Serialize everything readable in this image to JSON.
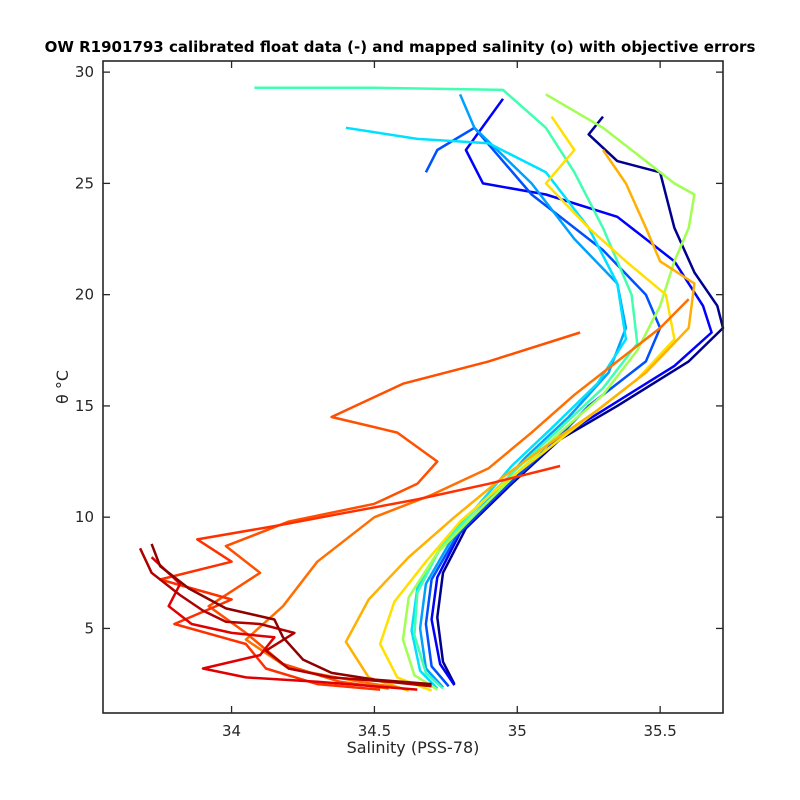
{
  "chart_data": {
    "type": "line",
    "title": "OW R1901793 calibrated float data (-) and mapped salinity (o) with objective errors",
    "xlabel": "Salinity (PSS-78)",
    "ylabel": "θ °C",
    "xlim": [
      33.55,
      35.72
    ],
    "ylim": [
      1.2,
      30.5
    ],
    "xticks": [
      "34",
      "34.5",
      "35",
      "35.5"
    ],
    "xtick_values": [
      34,
      34.5,
      35,
      35.5
    ],
    "yticks": [
      "5",
      "10",
      "15",
      "20",
      "25",
      "30"
    ],
    "ytick_values": [
      5,
      10,
      15,
      20,
      25,
      30
    ],
    "grid": false,
    "colormap": "jet",
    "series": [
      {
        "color": "#00008f",
        "points": [
          [
            35.3,
            28.0
          ],
          [
            35.25,
            27.2
          ],
          [
            35.35,
            26.0
          ],
          [
            35.5,
            25.5
          ],
          [
            35.55,
            23.0
          ],
          [
            35.62,
            21.0
          ],
          [
            35.7,
            19.5
          ],
          [
            35.72,
            18.5
          ],
          [
            35.6,
            17.0
          ],
          [
            35.35,
            15.0
          ],
          [
            35.15,
            13.5
          ],
          [
            34.98,
            11.5
          ],
          [
            34.82,
            9.5
          ],
          [
            34.74,
            7.5
          ],
          [
            34.72,
            5.5
          ],
          [
            34.74,
            3.5
          ],
          [
            34.78,
            2.5
          ]
        ]
      },
      {
        "color": "#0000ff",
        "points": [
          [
            34.95,
            28.8
          ],
          [
            34.82,
            26.5
          ],
          [
            34.88,
            25.0
          ],
          [
            35.1,
            24.5
          ],
          [
            35.35,
            23.5
          ],
          [
            35.55,
            21.5
          ],
          [
            35.65,
            19.5
          ],
          [
            35.68,
            18.3
          ],
          [
            35.55,
            16.8
          ],
          [
            35.3,
            14.8
          ],
          [
            35.1,
            13.2
          ],
          [
            34.95,
            11.2
          ],
          [
            34.8,
            9.3
          ],
          [
            34.72,
            7.3
          ],
          [
            34.7,
            5.4
          ],
          [
            34.73,
            3.4
          ],
          [
            34.78,
            2.45
          ]
        ]
      },
      {
        "color": "#0050ff",
        "points": [
          [
            34.68,
            25.5
          ],
          [
            34.72,
            26.5
          ],
          [
            34.85,
            27.5
          ],
          [
            35.05,
            24.5
          ],
          [
            35.3,
            22.0
          ],
          [
            35.45,
            20.0
          ],
          [
            35.5,
            18.5
          ],
          [
            35.45,
            17.0
          ],
          [
            35.25,
            15.0
          ],
          [
            35.1,
            13.0
          ],
          [
            34.93,
            11.0
          ],
          [
            34.79,
            9.2
          ],
          [
            34.7,
            7.2
          ],
          [
            34.68,
            5.2
          ],
          [
            34.7,
            3.3
          ],
          [
            34.76,
            2.4
          ]
        ]
      },
      {
        "color": "#00a0ff",
        "points": [
          [
            34.8,
            29.0
          ],
          [
            34.85,
            27.5
          ],
          [
            35.05,
            25.0
          ],
          [
            35.2,
            22.5
          ],
          [
            35.35,
            20.5
          ],
          [
            35.38,
            18.5
          ],
          [
            35.32,
            16.5
          ],
          [
            35.18,
            14.5
          ],
          [
            35.03,
            12.7
          ],
          [
            34.9,
            10.8
          ],
          [
            34.77,
            9.0
          ],
          [
            34.68,
            7.0
          ],
          [
            34.66,
            5.0
          ],
          [
            34.68,
            3.2
          ],
          [
            34.74,
            2.35
          ]
        ]
      },
      {
        "color": "#00e0ff",
        "points": [
          [
            34.4,
            27.5
          ],
          [
            34.65,
            27.0
          ],
          [
            34.9,
            26.8
          ],
          [
            35.1,
            25.5
          ],
          [
            35.25,
            23.0
          ],
          [
            35.35,
            20.5
          ],
          [
            35.38,
            18.0
          ],
          [
            35.28,
            16.0
          ],
          [
            35.12,
            14.0
          ],
          [
            34.98,
            12.3
          ],
          [
            34.86,
            10.5
          ],
          [
            34.74,
            8.8
          ],
          [
            34.65,
            6.8
          ],
          [
            34.63,
            4.9
          ],
          [
            34.66,
            3.1
          ],
          [
            34.72,
            2.3
          ]
        ]
      },
      {
        "color": "#40ffb0",
        "points": [
          [
            34.08,
            29.3
          ],
          [
            34.5,
            29.3
          ],
          [
            34.95,
            29.2
          ],
          [
            35.1,
            27.5
          ],
          [
            35.2,
            25.5
          ],
          [
            35.3,
            23.0
          ],
          [
            35.4,
            20.0
          ],
          [
            35.42,
            17.8
          ],
          [
            35.3,
            15.8
          ],
          [
            35.15,
            14.0
          ],
          [
            35.0,
            12.2
          ],
          [
            34.85,
            10.3
          ],
          [
            34.73,
            8.6
          ],
          [
            34.65,
            6.6
          ],
          [
            34.64,
            4.7
          ],
          [
            34.68,
            3.0
          ],
          [
            34.74,
            2.3
          ]
        ]
      },
      {
        "color": "#a0ff50",
        "points": [
          [
            35.1,
            29.0
          ],
          [
            35.3,
            27.5
          ],
          [
            35.45,
            26.0
          ],
          [
            35.55,
            25.0
          ],
          [
            35.62,
            24.5
          ],
          [
            35.6,
            23.0
          ],
          [
            35.55,
            21.5
          ],
          [
            35.5,
            19.5
          ],
          [
            35.42,
            17.5
          ],
          [
            35.3,
            15.5
          ],
          [
            35.15,
            13.8
          ],
          [
            35.0,
            12.0
          ],
          [
            34.85,
            10.1
          ],
          [
            34.72,
            8.4
          ],
          [
            34.62,
            6.4
          ],
          [
            34.6,
            4.5
          ],
          [
            34.64,
            2.9
          ],
          [
            34.72,
            2.25
          ]
        ]
      },
      {
        "color": "#ffe000",
        "points": [
          [
            35.12,
            28.0
          ],
          [
            35.2,
            26.5
          ],
          [
            35.1,
            25.0
          ],
          [
            35.25,
            23.0
          ],
          [
            35.38,
            21.5
          ],
          [
            35.52,
            20.0
          ],
          [
            35.55,
            18.0
          ],
          [
            35.42,
            16.2
          ],
          [
            35.25,
            14.5
          ],
          [
            35.1,
            13.0
          ],
          [
            34.95,
            11.5
          ],
          [
            34.8,
            9.8
          ],
          [
            34.68,
            8.0
          ],
          [
            34.57,
            6.2
          ],
          [
            34.52,
            4.3
          ],
          [
            34.58,
            2.8
          ],
          [
            34.7,
            2.2
          ]
        ]
      },
      {
        "color": "#ffb000",
        "points": [
          [
            35.3,
            26.5
          ],
          [
            35.38,
            25.0
          ],
          [
            35.45,
            23.0
          ],
          [
            35.5,
            21.5
          ],
          [
            35.62,
            20.5
          ],
          [
            35.6,
            18.5
          ],
          [
            35.45,
            16.5
          ],
          [
            35.28,
            14.8
          ],
          [
            35.1,
            13.2
          ],
          [
            34.95,
            11.8
          ],
          [
            34.78,
            10.0
          ],
          [
            34.62,
            8.2
          ],
          [
            34.48,
            6.3
          ],
          [
            34.4,
            4.4
          ],
          [
            34.48,
            2.8
          ],
          [
            34.62,
            2.2
          ]
        ]
      },
      {
        "color": "#ff7000",
        "points": [
          [
            35.6,
            19.8
          ],
          [
            35.5,
            18.5
          ],
          [
            35.35,
            17.0
          ],
          [
            35.2,
            15.5
          ],
          [
            35.05,
            13.8
          ],
          [
            34.9,
            12.2
          ],
          [
            34.7,
            11.0
          ],
          [
            34.5,
            10.0
          ],
          [
            34.3,
            8.0
          ],
          [
            34.18,
            6.0
          ],
          [
            34.05,
            4.5
          ],
          [
            34.2,
            3.2
          ],
          [
            34.45,
            2.6
          ],
          [
            34.6,
            2.3
          ]
        ]
      },
      {
        "color": "#ff5000",
        "points": [
          [
            35.22,
            18.3
          ],
          [
            34.9,
            17.0
          ],
          [
            34.6,
            16.0
          ],
          [
            34.35,
            14.5
          ],
          [
            34.58,
            13.8
          ],
          [
            34.72,
            12.5
          ],
          [
            34.65,
            11.5
          ],
          [
            34.5,
            10.6
          ],
          [
            34.2,
            9.8
          ],
          [
            33.98,
            8.7
          ],
          [
            34.1,
            7.5
          ],
          [
            33.92,
            6.0
          ],
          [
            34.05,
            4.8
          ],
          [
            34.18,
            3.4
          ],
          [
            34.38,
            2.6
          ],
          [
            34.55,
            2.3
          ]
        ]
      },
      {
        "color": "#ff3000",
        "points": [
          [
            35.15,
            12.3
          ],
          [
            34.9,
            11.5
          ],
          [
            34.65,
            10.8
          ],
          [
            34.4,
            10.2
          ],
          [
            34.15,
            9.6
          ],
          [
            33.88,
            9.0
          ],
          [
            34.0,
            8.0
          ],
          [
            33.75,
            7.2
          ],
          [
            34.0,
            6.3
          ],
          [
            33.8,
            5.2
          ],
          [
            34.05,
            4.3
          ],
          [
            34.12,
            3.2
          ],
          [
            34.3,
            2.5
          ],
          [
            34.52,
            2.25
          ]
        ]
      },
      {
        "color": "#e00000",
        "points": [
          [
            33.72,
            8.2
          ],
          [
            33.82,
            7.0
          ],
          [
            33.78,
            6.0
          ],
          [
            33.86,
            5.2
          ],
          [
            34.0,
            4.8
          ],
          [
            34.15,
            4.6
          ],
          [
            34.1,
            3.8
          ],
          [
            33.9,
            3.2
          ],
          [
            34.05,
            2.8
          ],
          [
            34.3,
            2.6
          ],
          [
            34.5,
            2.4
          ],
          [
            34.65,
            2.25
          ]
        ]
      },
      {
        "color": "#b00000",
        "points": [
          [
            33.68,
            8.6
          ],
          [
            33.72,
            7.5
          ],
          [
            33.82,
            6.5
          ],
          [
            33.9,
            5.8
          ],
          [
            33.98,
            5.3
          ],
          [
            34.1,
            5.2
          ],
          [
            34.22,
            4.8
          ],
          [
            34.12,
            4.0
          ],
          [
            34.2,
            3.2
          ],
          [
            34.35,
            2.8
          ],
          [
            34.55,
            2.6
          ],
          [
            34.7,
            2.4
          ]
        ]
      },
      {
        "color": "#8f0000",
        "points": [
          [
            33.72,
            8.8
          ],
          [
            33.75,
            7.8
          ],
          [
            33.85,
            6.8
          ],
          [
            33.98,
            5.9
          ],
          [
            34.15,
            5.4
          ],
          [
            34.18,
            4.6
          ],
          [
            34.25,
            3.6
          ],
          [
            34.35,
            3.0
          ],
          [
            34.5,
            2.7
          ],
          [
            34.7,
            2.5
          ]
        ]
      }
    ]
  }
}
